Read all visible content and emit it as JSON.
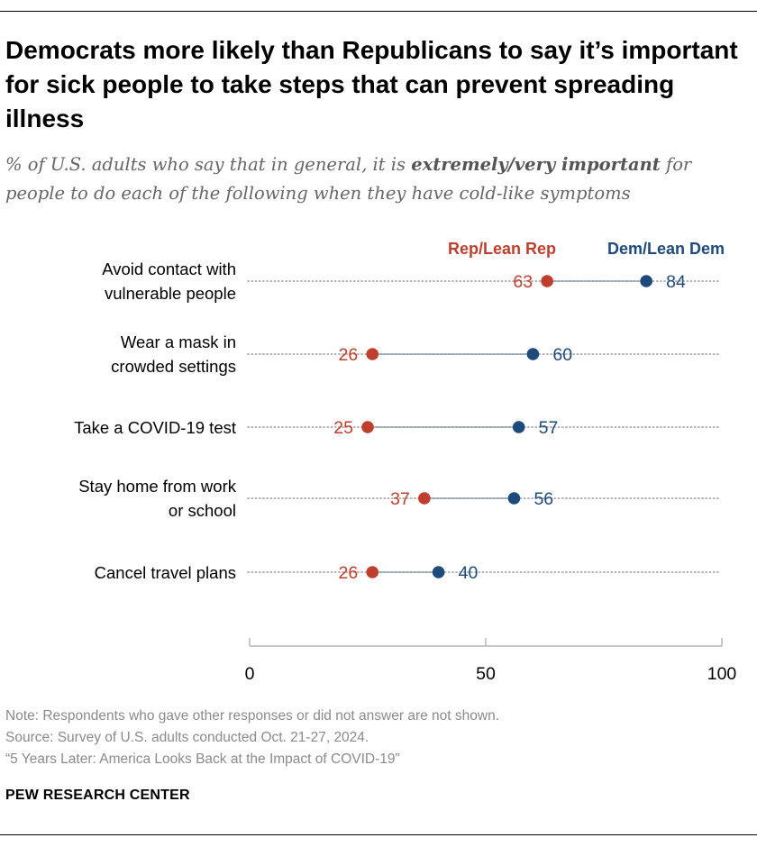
{
  "title": "Democrats more likely than Republicans to say it’s important for sick people to take steps that can prevent spreading illness",
  "subtitle": {
    "before": "% of U.S. adults who say that in general, it is ",
    "emphasis": "extremely/very important",
    "after": " for people to do each of the following when they have cold-like symptoms"
  },
  "chart_data": {
    "type": "scatter",
    "subtype": "dot-plot",
    "categories": [
      [
        "Avoid contact with",
        "vulnerable people"
      ],
      [
        "Wear a mask in",
        "crowded settings"
      ],
      [
        "Take a COVID-19 test"
      ],
      [
        "Stay home from work",
        "or school"
      ],
      [
        "Cancel travel plans"
      ]
    ],
    "series": [
      {
        "name": "Rep/Lean Rep",
        "color": "#bf3f2e",
        "values": [
          63,
          26,
          25,
          37,
          26
        ]
      },
      {
        "name": "Dem/Lean Dem",
        "color": "#1f4a7c",
        "values": [
          84,
          60,
          57,
          56,
          40
        ]
      }
    ],
    "xlim": [
      0,
      100
    ],
    "xticks": [
      0,
      50,
      100
    ],
    "xlabel": "",
    "ylabel": "",
    "legend": "top-right",
    "grid": "dotted row lines"
  },
  "footer": {
    "note": "Note: Respondents who gave other responses or did not answer are not shown.",
    "source": "Source: Survey of U.S. adults conducted Oct. 21-27, 2024.",
    "report": "“5 Years Later: America Looks Back at the Impact of COVID-19”",
    "brand": "PEW RESEARCH CENTER"
  }
}
